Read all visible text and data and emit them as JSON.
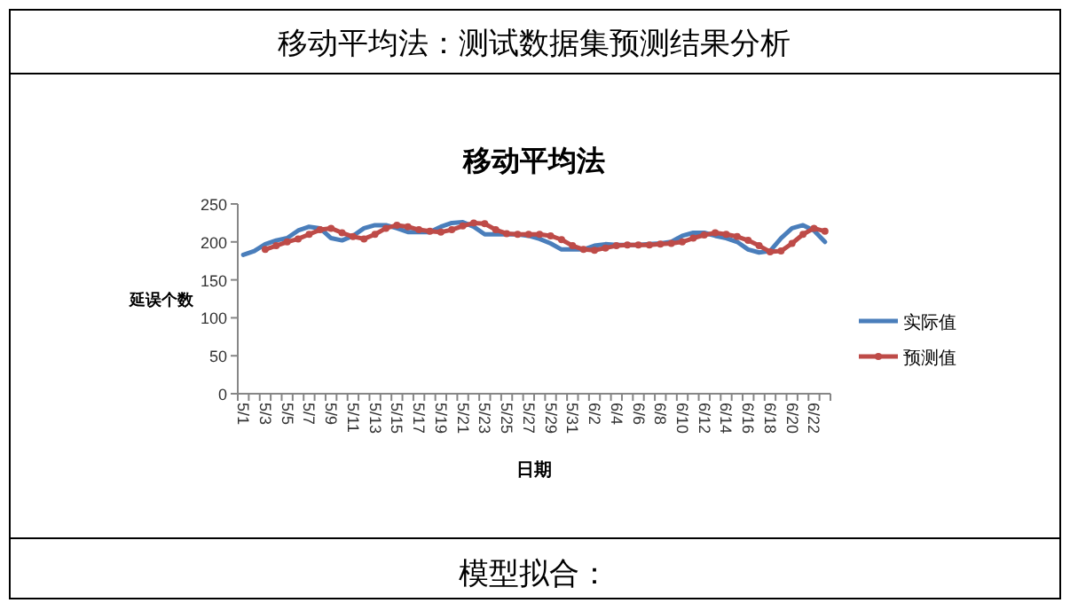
{
  "chart_data": {
    "type": "line",
    "title": "移动平均法",
    "xlabel": "日期",
    "ylabel": "延误个数",
    "annotations": [
      "移动平均法：测试数据集预测结果分析",
      "模型拟合："
    ],
    "categories": [
      "5/1",
      null,
      "5/3",
      null,
      "5/5",
      null,
      "5/7",
      null,
      "5/9",
      null,
      "5/11",
      null,
      "5/13",
      null,
      "5/15",
      null,
      "5/17",
      null,
      "5/19",
      null,
      "5/21",
      null,
      "5/23",
      null,
      "5/25",
      null,
      "5/27",
      null,
      "5/29",
      null,
      "5/31",
      null,
      "6/2",
      null,
      "6/4",
      null,
      "6/6",
      null,
      "6/8",
      null,
      "6/10",
      null,
      "6/12",
      null,
      "6/14",
      null,
      "6/16",
      null,
      "6/18",
      null,
      "6/20",
      null,
      "6/22",
      null
    ],
    "series": [
      {
        "name": "实际值",
        "color": "#4a7ebb",
        "marker": "none",
        "values": [
          183,
          188,
          197,
          202,
          205,
          215,
          220,
          218,
          205,
          202,
          208,
          218,
          222,
          222,
          218,
          213,
          213,
          213,
          220,
          225,
          226,
          220,
          210,
          210,
          210,
          210,
          208,
          204,
          198,
          190,
          190,
          190,
          195,
          197,
          196,
          196,
          196,
          197,
          198,
          200,
          208,
          212,
          212,
          208,
          205,
          200,
          190,
          186,
          188,
          205,
          218,
          222,
          215,
          200
        ]
      },
      {
        "name": "预测值",
        "color": "#be4b48",
        "marker": "circle",
        "values": [
          null,
          null,
          190,
          195,
          200,
          204,
          210,
          216,
          218,
          212,
          207,
          204,
          210,
          218,
          222,
          220,
          216,
          214,
          213,
          216,
          221,
          225,
          224,
          216,
          211,
          210,
          210,
          210,
          208,
          203,
          195,
          190,
          189,
          192,
          195,
          196,
          196,
          196,
          197,
          198,
          200,
          205,
          209,
          212,
          210,
          207,
          202,
          195,
          187,
          188,
          198,
          210,
          218,
          214
        ]
      }
    ],
    "ylim": [
      0,
      250
    ],
    "yticks": [
      0,
      50,
      100,
      150,
      200,
      250
    ],
    "legend": "right",
    "line_style": "solid"
  }
}
